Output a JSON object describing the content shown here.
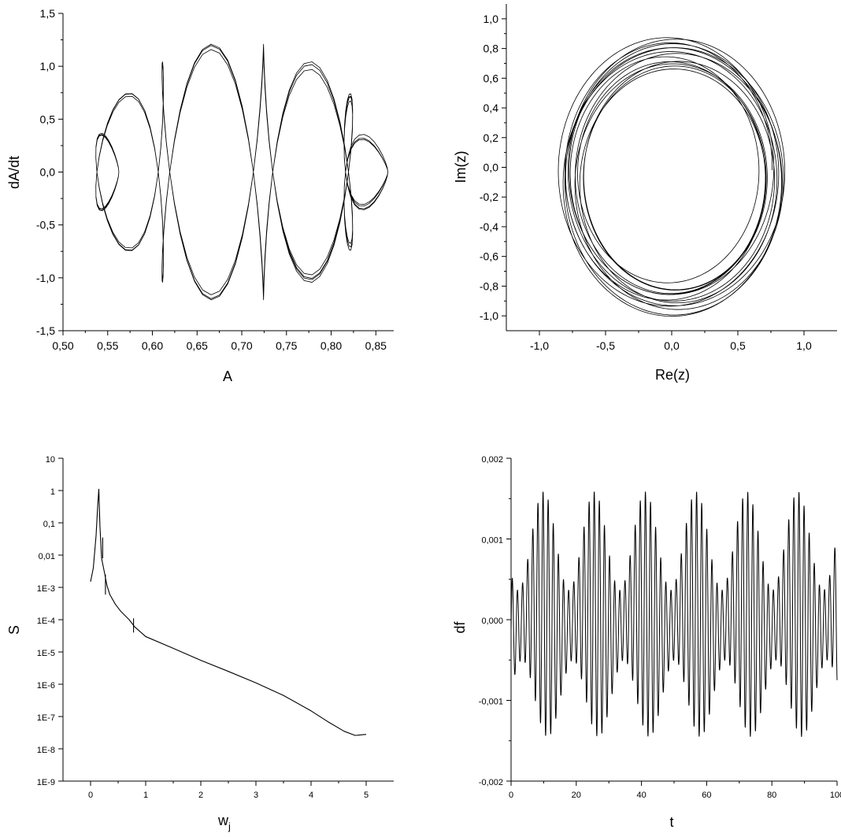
{
  "chart_data": [
    {
      "type": "line",
      "title": "",
      "xlabel": "A",
      "ylabel": "dA/dt",
      "xlim": [
        0.5,
        0.87
      ],
      "ylim": [
        -1.5,
        1.5
      ],
      "xticks": [
        "0,50",
        "0,55",
        "0,60",
        "0,65",
        "0,70",
        "0,75",
        "0,80",
        "0,85"
      ],
      "xtick_values": [
        0.5,
        0.55,
        0.6,
        0.65,
        0.7,
        0.75,
        0.8,
        0.85
      ],
      "yticks": [
        "-1,5",
        "-1,0",
        "-0,5",
        "0,0",
        "0,5",
        "1,0",
        "1,5"
      ],
      "ytick_values": [
        -1.5,
        -1.0,
        -0.5,
        0.0,
        0.5,
        1.0,
        1.5
      ],
      "grid": false,
      "description_series": {
        "kind": "phase-portrait",
        "center": [
          0.695,
          0.0
        ],
        "amplitude_range": [
          0.544,
          0.845
        ],
        "rate_peak": [
          1.23,
          1.2
        ],
        "loops": 26
      }
    },
    {
      "type": "line",
      "title": "",
      "xlabel": "Re(z)",
      "ylabel": "Im(z)",
      "xlim": [
        -1.25,
        1.25
      ],
      "ylim": [
        -1.1,
        1.1
      ],
      "xticks": [
        "-1,0",
        "-0,5",
        "0,0",
        "0,5",
        "1,0"
      ],
      "xtick_values": [
        -1.0,
        -0.5,
        0.0,
        0.5,
        1.0
      ],
      "yticks": [
        "-1,0",
        "-0,8",
        "-0,6",
        "-0,4",
        "-0,2",
        "0,0",
        "0,2",
        "0,4",
        "0,6",
        "0,8",
        "1,0"
      ],
      "ytick_values": [
        -1.0,
        -0.8,
        -0.6,
        -0.4,
        -0.2,
        0.0,
        0.2,
        0.4,
        0.6,
        0.8,
        1.0
      ],
      "grid": false,
      "description_series": {
        "kind": "orbit",
        "radius_range": [
          0.74,
          0.91
        ],
        "turns": 14
      }
    },
    {
      "type": "line",
      "title": "",
      "xlabel": "w",
      "xlabel_sub": "j",
      "ylabel": "S",
      "xlim": [
        -0.5,
        5.5
      ],
      "yscale": "log",
      "ylim": [
        1e-09,
        10
      ],
      "xticks": [
        "0",
        "1",
        "2",
        "3",
        "4",
        "5"
      ],
      "xtick_values": [
        0,
        1,
        2,
        3,
        4,
        5
      ],
      "yticks": [
        "10",
        "1",
        "0,1",
        "0,01",
        "1E-3",
        "1E-4",
        "1E-5",
        "1E-6",
        "1E-7",
        "1E-8",
        "1E-9"
      ],
      "ytick_values": [
        10,
        1,
        0.1,
        0.01,
        0.001,
        0.0001,
        1e-05,
        1e-06,
        1e-07,
        1e-08,
        1e-09
      ],
      "grid": false,
      "x": [
        0.0,
        0.05,
        0.1,
        0.13,
        0.15,
        0.17,
        0.2,
        0.25,
        0.3,
        0.35,
        0.45,
        0.55,
        0.7,
        0.8,
        1.0,
        1.5,
        2.0,
        2.5,
        3.0,
        3.5,
        4.0,
        4.3,
        4.6,
        4.8,
        4.9,
        5.0
      ],
      "y": [
        0.0015,
        0.004,
        0.04,
        0.35,
        1.1,
        0.08,
        0.008,
        0.003,
        0.0011,
        0.0006,
        0.0003,
        0.00018,
        0.0001,
        6e-05,
        3e-05,
        1.3e-05,
        5.5e-06,
        2.5e-06,
        1.1e-06,
        4.5e-07,
        1.5e-07,
        7e-08,
        3.5e-08,
        2.6e-08,
        2.7e-08,
        2.8e-08
      ],
      "spikes": [
        {
          "x": 0.22,
          "y_low": 0.008,
          "y_high": 0.035
        },
        {
          "x": 0.27,
          "y_low": 0.0006,
          "y_high": 0.0025
        },
        {
          "x": 0.78,
          "y_low": 4e-05,
          "y_high": 0.00011
        }
      ]
    },
    {
      "type": "line",
      "title": "",
      "xlabel": "t",
      "ylabel": "df",
      "xlim": [
        0,
        100
      ],
      "ylim": [
        -0.002,
        0.002
      ],
      "xticks": [
        "0",
        "20",
        "40",
        "60",
        "80",
        "100"
      ],
      "xtick_values": [
        0,
        20,
        40,
        60,
        80,
        100
      ],
      "yticks": [
        "-0,002",
        "-0,001",
        "0,000",
        "0,001",
        "0,002"
      ],
      "ytick_values": [
        -0.002,
        -0.001,
        0.0,
        0.001,
        0.002
      ],
      "grid": false,
      "description_series": {
        "kind": "beating-oscillation",
        "fast_period": 1.57,
        "beat_period": 15.6,
        "peak_amplitude": 0.0015,
        "min_amplitude": 0.00045
      }
    }
  ]
}
